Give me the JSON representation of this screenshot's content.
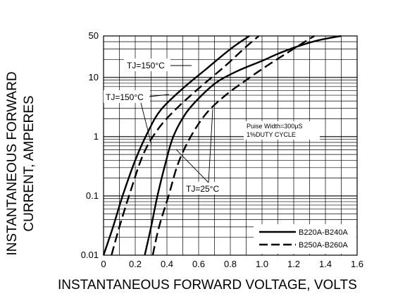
{
  "chart_data": {
    "type": "line",
    "title": "",
    "xlabel": "INSTANTANEOUS FORWARD VOLTAGE, VOLTS",
    "ylabel_line1": "INSTANTANEOUS FORWARD",
    "ylabel_line2": "CURRENT, AMPERES",
    "xlim": [
      0,
      1.6
    ],
    "ylim": [
      0.01,
      50
    ],
    "y_scale": "log",
    "grid": true,
    "x_ticks": [
      "0",
      "0.2",
      "0.4",
      "0.6",
      "0.8",
      "1.0",
      "1.2",
      "1.4",
      "1.6"
    ],
    "x_tick_values": [
      0,
      0.2,
      0.4,
      0.6,
      0.8,
      1.0,
      1.2,
      1.4,
      1.6
    ],
    "y_ticks": [
      "0.01",
      "0.1",
      "1",
      "10",
      "50"
    ],
    "y_tick_values": [
      0.01,
      0.1,
      1,
      10,
      50
    ],
    "legend_position": "bottom-right",
    "series": [
      {
        "name": "B220A-B240A",
        "style": "solid",
        "condition": "TJ=150°C",
        "x": [
          0.0,
          0.06,
          0.12,
          0.2,
          0.28,
          0.36,
          0.5,
          0.65,
          0.8,
          0.92
        ],
        "y": [
          0.01,
          0.03,
          0.1,
          0.4,
          1.2,
          2.8,
          6.5,
          14,
          30,
          50
        ]
      },
      {
        "name": "B250A-B260A",
        "style": "dashed",
        "condition": "TJ=150°C",
        "x": [
          0.05,
          0.1,
          0.17,
          0.25,
          0.34,
          0.45,
          0.6,
          0.76,
          0.9,
          0.98
        ],
        "y": [
          0.01,
          0.03,
          0.12,
          0.5,
          1.3,
          2.8,
          6.5,
          15,
          33,
          50
        ]
      },
      {
        "name": "B220A-B240A",
        "style": "solid",
        "condition": "TJ=25°C",
        "x": [
          0.26,
          0.3,
          0.34,
          0.39,
          0.44,
          0.52,
          0.62,
          0.72,
          0.85,
          1.0,
          1.1,
          1.22,
          1.35,
          1.5
        ],
        "y": [
          0.01,
          0.03,
          0.1,
          0.35,
          1.0,
          2.5,
          5.0,
          8.5,
          13,
          19,
          25,
          33,
          42,
          50
        ]
      },
      {
        "name": "B250A-B260A",
        "style": "dashed",
        "condition": "TJ=25°C",
        "x": [
          0.31,
          0.35,
          0.41,
          0.47,
          0.55,
          0.65,
          0.77,
          0.9,
          1.02,
          1.15,
          1.25,
          1.33
        ],
        "y": [
          0.01,
          0.03,
          0.1,
          0.35,
          1.0,
          2.5,
          5.0,
          9.0,
          15,
          25,
          37,
          50
        ]
      }
    ],
    "annotations": [
      {
        "text": "TJ=150°C",
        "points_to": "solid TJ=150°C"
      },
      {
        "text": "TJ=150°C",
        "points_to": "dashed TJ=150°C"
      },
      {
        "text": "TJ=25°C",
        "points_to": "TJ=25°C curves"
      },
      {
        "text": "Puise Width=300μS"
      },
      {
        "text": "1%DUTY CYCLE"
      }
    ],
    "legend": [
      {
        "label": "B220A-B240A",
        "style": "solid"
      },
      {
        "label": "B250A-B260A",
        "style": "dashed"
      }
    ]
  }
}
